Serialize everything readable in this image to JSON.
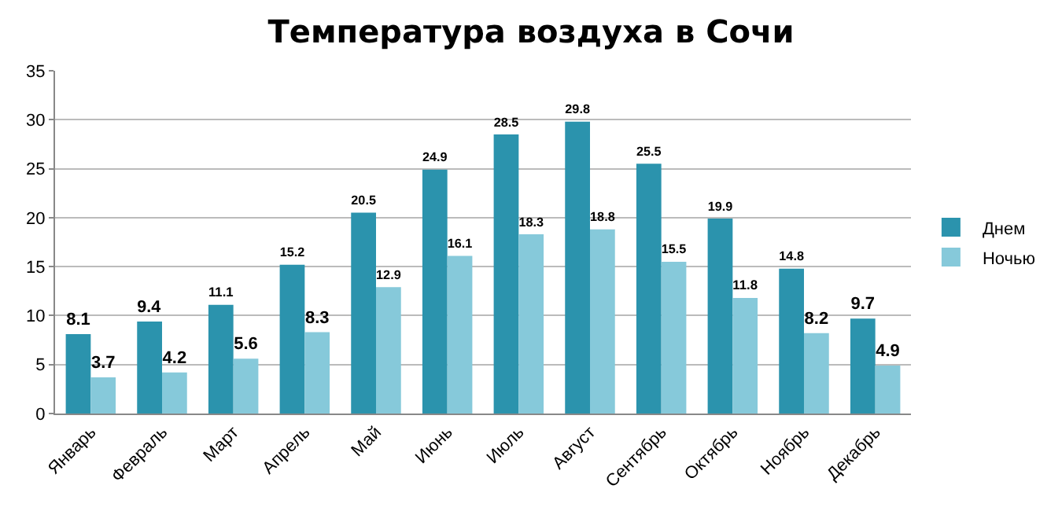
{
  "chart_data": {
    "type": "bar",
    "title": "Температура воздуха в Сочи",
    "categories": [
      "Январь",
      "Февраль",
      "Март",
      "Апрель",
      "Май",
      "Июнь",
      "Июль",
      "Август",
      "Сентябрь",
      "Октябрь",
      "Ноябрь",
      "Декабрь"
    ],
    "series": [
      {
        "name": "Днем",
        "color": "#2b93ad",
        "values": [
          8.1,
          9.4,
          11.1,
          15.2,
          20.5,
          24.9,
          28.5,
          29.8,
          25.5,
          19.9,
          14.8,
          9.7
        ]
      },
      {
        "name": "Ночью",
        "color": "#86c9da",
        "values": [
          3.7,
          4.2,
          5.6,
          8.3,
          12.9,
          16.1,
          18.3,
          18.8,
          15.5,
          11.8,
          8.2,
          4.9
        ]
      }
    ],
    "ylim": [
      0,
      35
    ],
    "yticks": [
      0,
      5,
      10,
      15,
      20,
      25,
      30,
      35
    ],
    "grid": "y",
    "legend": "right",
    "data_labels": true
  }
}
